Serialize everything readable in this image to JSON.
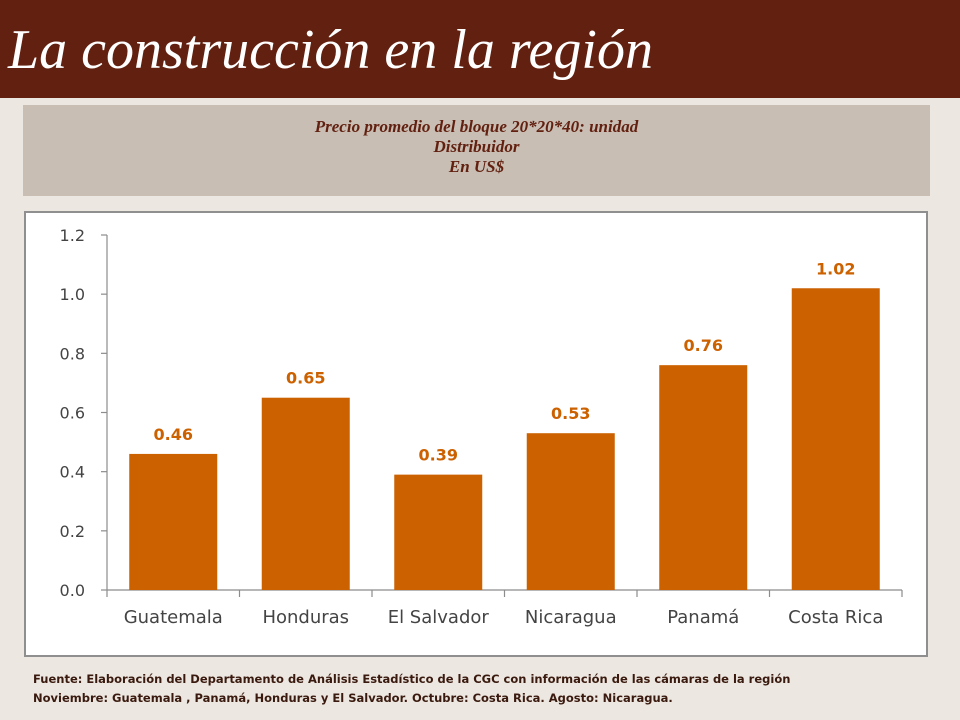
{
  "slide": {
    "title": "La construcción en la región",
    "subtitle_lines": [
      "Precio promedio del bloque 20*20*40: unidad",
      "Distribuidor",
      "En US$"
    ],
    "footnote_lines": [
      "Fuente:  Elaboración del Departamento de Análisis Estadístico de la CGC con información de las cámaras de la región",
      "Noviembre: Guatemala , Panamá, Honduras y El Salvador.  Octubre: Costa Rica.  Agosto: Nicaragua."
    ]
  },
  "colors": {
    "title_bar": "#622010",
    "subtitle_bg": "#c8beb3",
    "bar": "#cc6100",
    "data_label": "#cc6100"
  },
  "chart_data": {
    "type": "bar",
    "categories": [
      "Guatemala",
      "Honduras",
      "El Salvador",
      "Nicaragua",
      "Panamá",
      "Costa Rica"
    ],
    "values": [
      0.46,
      0.65,
      0.39,
      0.53,
      0.76,
      1.02
    ],
    "data_labels": [
      "0.46",
      "0.65",
      "0.39",
      "0.53",
      "0.76",
      "1.02"
    ],
    "y_ticks": [
      "0.0",
      "0.2",
      "0.4",
      "0.6",
      "0.8",
      "1.0",
      "1.2"
    ],
    "ylim": [
      0,
      1.2
    ],
    "title": "",
    "xlabel": "",
    "ylabel": "",
    "grid": false,
    "legend": "none"
  }
}
